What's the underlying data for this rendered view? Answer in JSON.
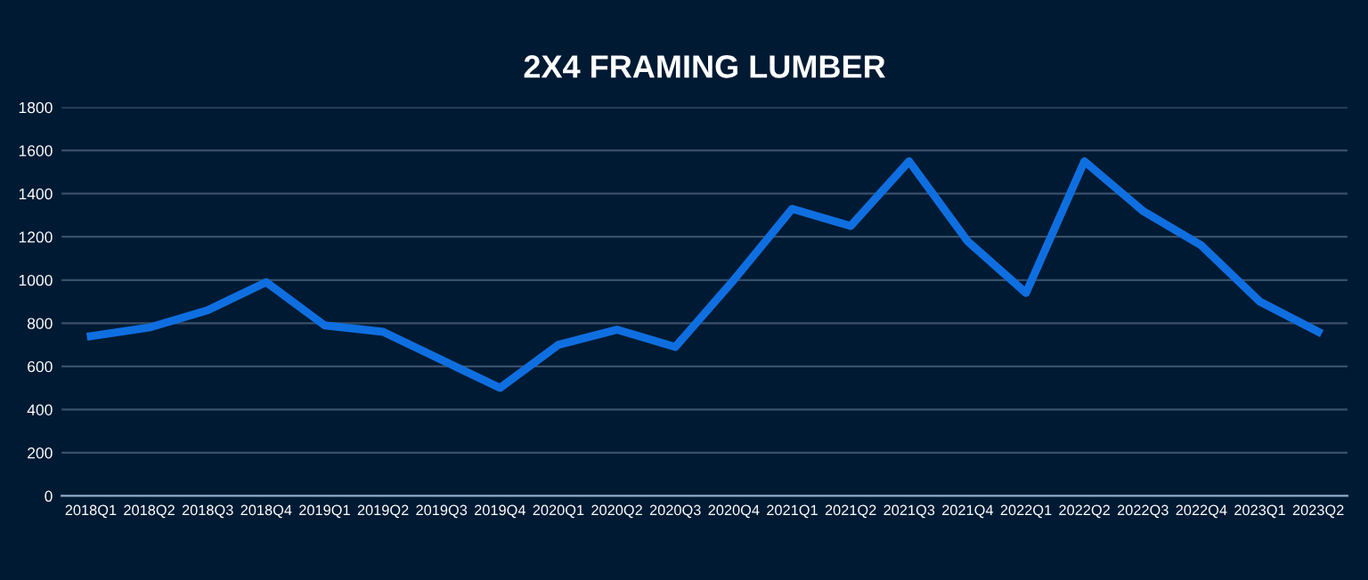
{
  "chart_data": {
    "type": "line",
    "title": "2X4 FRAMING LUMBER",
    "categories": [
      "2018Q1",
      "2018Q2",
      "2018Q3",
      "2018Q4",
      "2019Q1",
      "2019Q2",
      "2019Q3",
      "2019Q4",
      "2020Q1",
      "2020Q2",
      "2020Q3",
      "2020Q4",
      "2021Q1",
      "2021Q2",
      "2021Q3",
      "2021Q4",
      "2022Q1",
      "2022Q2",
      "2022Q3",
      "2022Q4",
      "2023Q1",
      "2023Q2"
    ],
    "series": [
      {
        "color": "#0f6fe0",
        "values": [
          740,
          780,
          860,
          990,
          790,
          760,
          630,
          500,
          700,
          770,
          690,
          1000,
          1330,
          1250,
          1550,
          1180,
          940,
          1550,
          1320,
          1160,
          900,
          760
        ]
      }
    ],
    "ylim": [
      0,
      1800
    ],
    "yticks": [
      0,
      200,
      400,
      600,
      800,
      1000,
      1200,
      1400,
      1600,
      1800
    ],
    "grid": "y",
    "marker": "none",
    "line_style": "solid"
  }
}
